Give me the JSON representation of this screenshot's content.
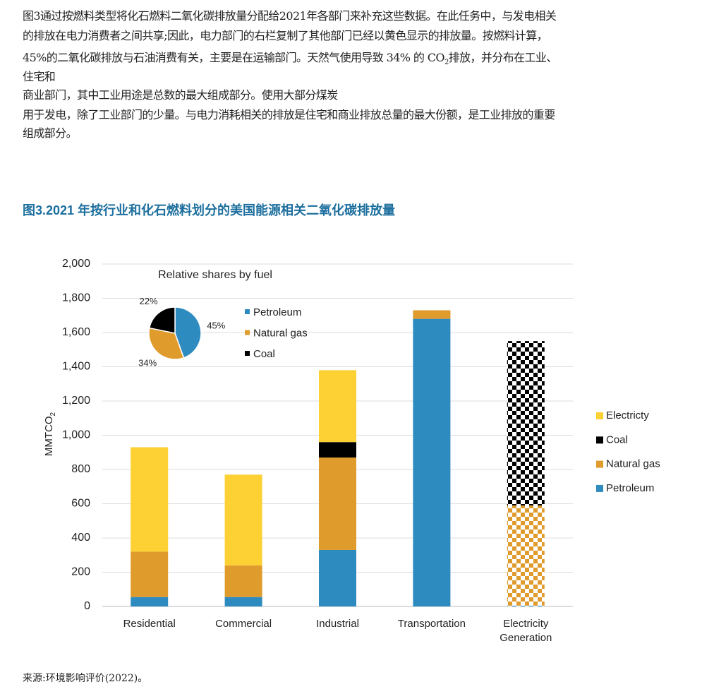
{
  "text": {
    "lines": [
      "图3通过按燃料类型将化石燃料二氧化碳排放量分配给2021年各部门来补充这些数据。在此任务中，与发电相关",
      "的排放在电力消费者之间共享;因此，电力部门的右栏复制了其他部门已经以黄色显示的排放量。按燃料计算，",
      {
        "before": "45%的二氧化碳排放与石油消费有关，主要是在运输部门。天然气使用导致 34% 的 CO",
        "sub": "2",
        "after": "排放，并分布在工业、"
      },
      "住宅和",
      "商业部门，其中工业用途是总数的最大组成部分。使用大部分煤炭",
      "用于发电，除了工业部门的少量。与电力消耗相关的排放是住宅和商业排放总量的最大份额，是工业排放的重要",
      "组成部分。"
    ],
    "figure_title": "图3.2021 年按行业和化石燃料划分的美国能源相关二氧化碳排放量",
    "source": "来源:环境影响评价(2022)。"
  },
  "chart_data": [
    {
      "type": "bar",
      "stacked": true,
      "categories": [
        "Residential",
        "Commercial",
        "Industrial",
        "Transportation",
        "Electricity Generation"
      ],
      "series": [
        {
          "name": "Petroleum",
          "color": "#2e8bc0",
          "values": [
            55,
            55,
            330,
            1680,
            5
          ]
        },
        {
          "name": "Natural gas",
          "color": "#e09b2d",
          "values": [
            265,
            185,
            540,
            50,
            585
          ]
        },
        {
          "name": "Coal",
          "color": "#000000",
          "values": [
            0,
            0,
            90,
            0,
            960
          ]
        },
        {
          "name": "Electricty",
          "color": "#fdd033",
          "values": [
            610,
            530,
            420,
            0,
            0
          ]
        }
      ],
      "patterned": [
        false,
        false,
        false,
        false,
        true
      ],
      "ylabel": "MMTCO",
      "ylabel_sub": "2",
      "ylim": [
        0,
        2000
      ],
      "yticks": [
        0,
        200,
        400,
        600,
        800,
        {
          "value": 1000,
          "label": "1,000"
        },
        {
          "value": 1200,
          "label": "1,200"
        },
        {
          "value": 1400,
          "label": "1,400"
        },
        {
          "value": 1600,
          "label": "1,600"
        },
        {
          "value": 1800,
          "label": "1,800"
        },
        {
          "value": 2000,
          "label": "2,000"
        }
      ],
      "grid": true,
      "legend": "right"
    },
    {
      "type": "pie",
      "title": "Relative shares by fuel",
      "categories": [
        "Petroleum",
        "Natural gas",
        "Coal"
      ],
      "values": [
        45,
        34,
        22
      ],
      "value_labels": [
        "45%",
        "34%",
        "22%"
      ],
      "colors": [
        "#2e8bc0",
        "#e09b2d",
        "#000000"
      ]
    }
  ]
}
